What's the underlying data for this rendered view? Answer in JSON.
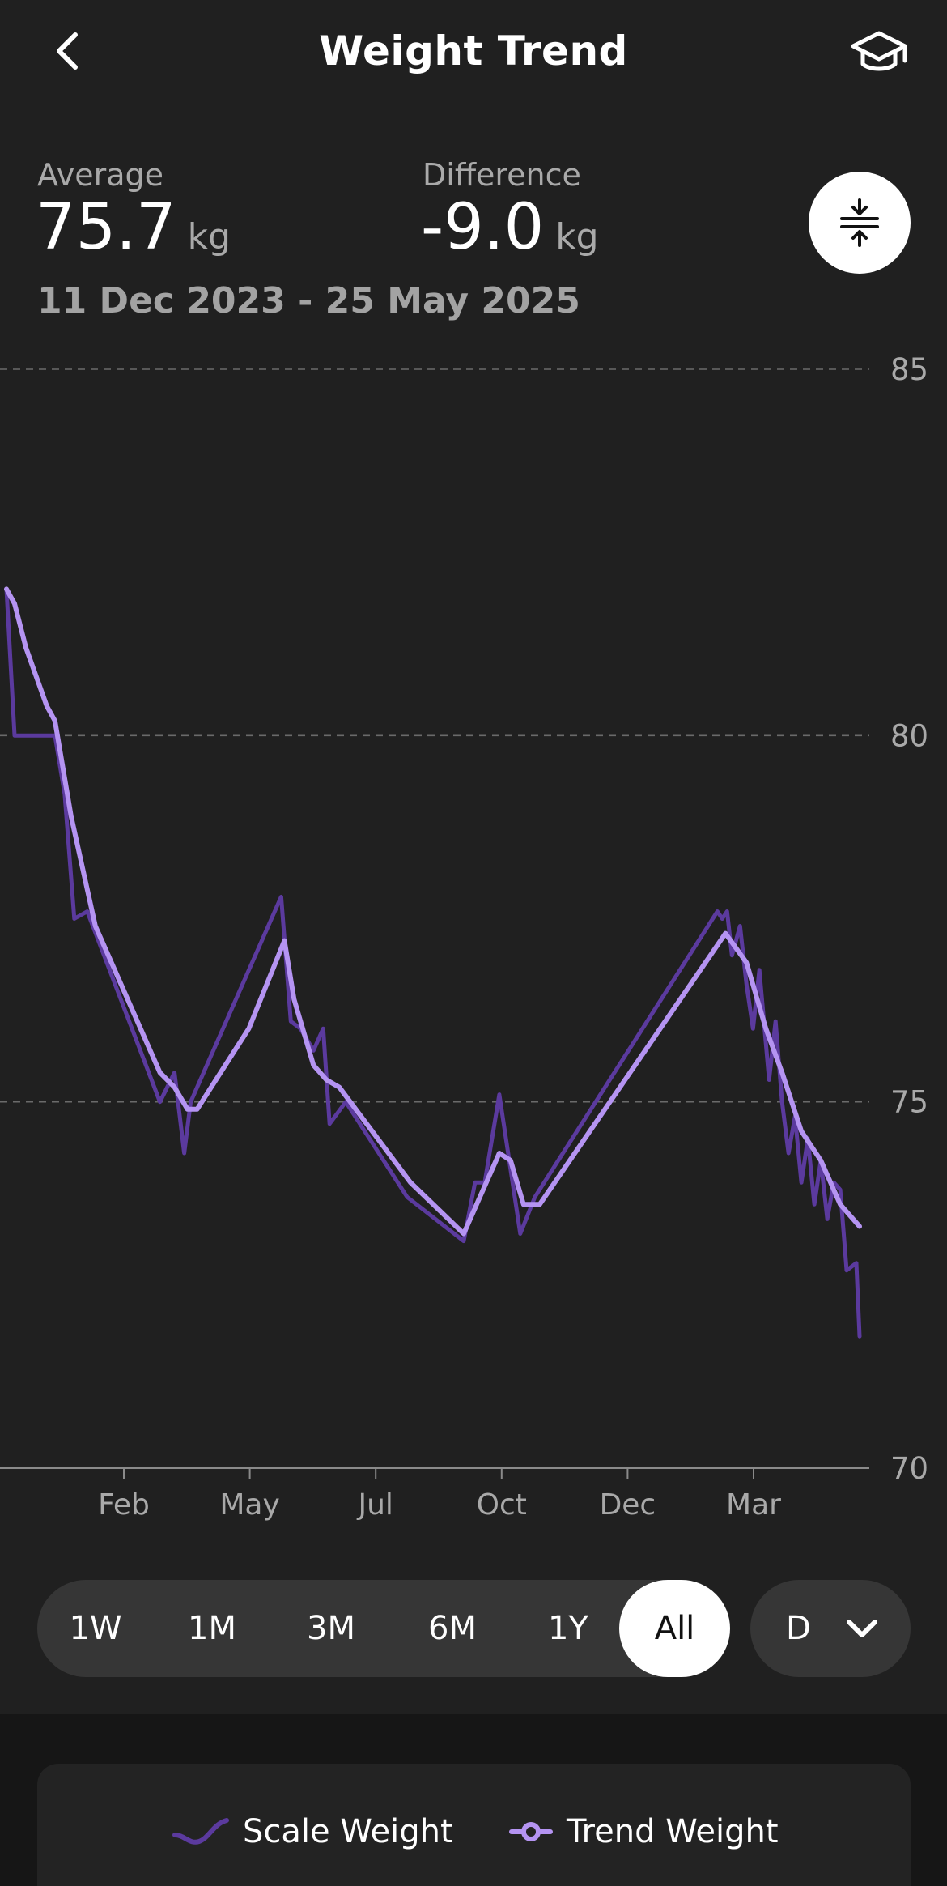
{
  "header": {
    "title": "Weight Trend",
    "back_icon": "chevron-left-icon",
    "learn_icon": "graduation-cap-icon"
  },
  "stats": {
    "average": {
      "label": "Average",
      "value": "75.7",
      "unit": "kg"
    },
    "difference": {
      "label": "Difference",
      "value": "-9.0",
      "unit": "kg"
    },
    "date_range": "11 Dec 2023 - 25 May 2025"
  },
  "compress_icon": "compress-vertical-icon",
  "colors": {
    "background": "#202020",
    "scale_weight": "#5b3a9e",
    "trend_weight": "#b594f2",
    "grid": "#6a6a6a",
    "label": "#a9a9a9"
  },
  "chart_data": {
    "type": "line",
    "yticks": [
      "85",
      "80",
      "75",
      "70"
    ],
    "ylim": [
      70,
      85
    ],
    "xticks": [
      "Feb",
      "May",
      "Jul",
      "Oct",
      "Dec",
      "Mar"
    ],
    "grid": "dashed horizontal",
    "x_unit": "days since 11 Dec 2023",
    "xlim": [
      0,
      531
    ],
    "series": [
      {
        "name": "Scale Weight",
        "points": [
          [
            0,
            82.0
          ],
          [
            5,
            80.0
          ],
          [
            30,
            80.0
          ],
          [
            36,
            79.2
          ],
          [
            42,
            77.5
          ],
          [
            50,
            77.6
          ],
          [
            95,
            75.0
          ],
          [
            104,
            75.4
          ],
          [
            110,
            74.3
          ],
          [
            114,
            75.0
          ],
          [
            170,
            77.8
          ],
          [
            176,
            76.1
          ],
          [
            182,
            76.0
          ],
          [
            190,
            75.7
          ],
          [
            196,
            76.0
          ],
          [
            200,
            74.7
          ],
          [
            210,
            75.0
          ],
          [
            248,
            73.7
          ],
          [
            283,
            73.1
          ],
          [
            290,
            73.9
          ],
          [
            296,
            73.9
          ],
          [
            305,
            75.1
          ],
          [
            318,
            73.2
          ],
          [
            327,
            73.7
          ],
          [
            440,
            77.6
          ],
          [
            443,
            77.5
          ],
          [
            446,
            77.6
          ],
          [
            449,
            77.0
          ],
          [
            454,
            77.4
          ],
          [
            458,
            76.6
          ],
          [
            462,
            76.0
          ],
          [
            466,
            76.8
          ],
          [
            472,
            75.3
          ],
          [
            476,
            76.1
          ],
          [
            480,
            75.0
          ],
          [
            484,
            74.3
          ],
          [
            488,
            74.8
          ],
          [
            492,
            73.9
          ],
          [
            496,
            74.5
          ],
          [
            500,
            73.6
          ],
          [
            504,
            74.2
          ],
          [
            508,
            73.4
          ],
          [
            512,
            73.9
          ],
          [
            516,
            73.8
          ],
          [
            520,
            72.7
          ],
          [
            526,
            72.8
          ],
          [
            528,
            71.8
          ]
        ]
      },
      {
        "name": "Trend Weight",
        "points": [
          [
            0,
            82.0
          ],
          [
            5,
            81.8
          ],
          [
            12,
            81.2
          ],
          [
            25,
            80.4
          ],
          [
            30,
            80.2
          ],
          [
            40,
            78.9
          ],
          [
            55,
            77.4
          ],
          [
            95,
            75.4
          ],
          [
            104,
            75.2
          ],
          [
            112,
            74.9
          ],
          [
            118,
            74.9
          ],
          [
            150,
            76.0
          ],
          [
            172,
            77.2
          ],
          [
            178,
            76.4
          ],
          [
            190,
            75.5
          ],
          [
            198,
            75.3
          ],
          [
            206,
            75.2
          ],
          [
            250,
            73.9
          ],
          [
            283,
            73.2
          ],
          [
            295,
            73.8
          ],
          [
            305,
            74.3
          ],
          [
            312,
            74.2
          ],
          [
            320,
            73.6
          ],
          [
            330,
            73.6
          ],
          [
            445,
            77.3
          ],
          [
            458,
            76.9
          ],
          [
            470,
            76.0
          ],
          [
            480,
            75.4
          ],
          [
            492,
            74.6
          ],
          [
            504,
            74.2
          ],
          [
            516,
            73.6
          ],
          [
            528,
            73.3
          ]
        ]
      }
    ]
  },
  "range_selector": {
    "options": [
      "1W",
      "1M",
      "3M",
      "6M",
      "1Y",
      "All"
    ],
    "selected": "All"
  },
  "granularity": {
    "value": "D",
    "icon": "chevron-down-icon"
  },
  "legend": {
    "scale": "Scale Weight",
    "trend": "Trend Weight"
  }
}
